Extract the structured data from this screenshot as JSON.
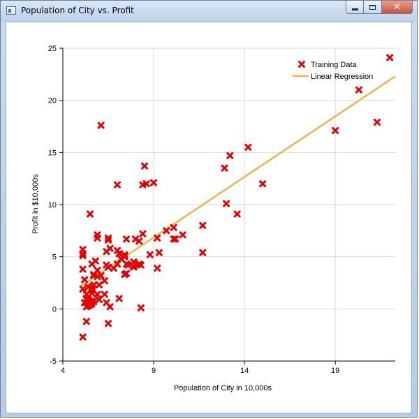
{
  "window": {
    "title": "Population of City vs. Profit",
    "controls": {
      "minimize": "minimize",
      "maximize": "maximize",
      "close": "close"
    }
  },
  "colors": {
    "marker": "#e60000",
    "regression": "#f3b340",
    "grid": "#d9d9d9",
    "axis": "#000000"
  },
  "chart_data": {
    "type": "scatter",
    "title": "",
    "xlabel": "Population of City in 10,000s",
    "ylabel": "Profit in $10,000s",
    "xlim": [
      4,
      22.3
    ],
    "ylim": [
      -5,
      25
    ],
    "xticks": [
      4,
      9,
      14,
      19
    ],
    "yticks": [
      -5,
      0,
      5,
      10,
      15,
      20,
      25
    ],
    "grid": true,
    "legend_position": "top-right",
    "legend": [
      {
        "name": "Training Data",
        "kind": "marker"
      },
      {
        "name": "Linear Regression",
        "kind": "line"
      }
    ],
    "series": [
      {
        "name": "Training Data",
        "points": [
          [
            6.1,
            17.6
          ],
          [
            5.5,
            9.1
          ],
          [
            8.5,
            13.7
          ],
          [
            7.0,
            11.9
          ],
          [
            5.9,
            6.8
          ],
          [
            8.4,
            11.9
          ],
          [
            7.5,
            4.3
          ],
          [
            8.6,
            12.0
          ],
          [
            6.5,
            6.6
          ],
          [
            5.1,
            3.8
          ],
          [
            5.7,
            3.3
          ],
          [
            14.2,
            15.5
          ],
          [
            5.7,
            3.2
          ],
          [
            11.7,
            5.4
          ],
          [
            5.2,
            0.6
          ],
          [
            5.4,
            2.1
          ],
          [
            6.4,
            5.5
          ],
          [
            5.1,
            5.7
          ],
          [
            6.4,
            0.6
          ],
          [
            7.1,
            5.3
          ],
          [
            5.2,
            0.6
          ],
          [
            5.9,
            3.7
          ],
          [
            5.6,
            2.1
          ],
          [
            13.0,
            10.1
          ],
          [
            5.6,
            1.5
          ],
          [
            5.1,
            -2.7
          ],
          [
            7.0,
            4.3
          ],
          [
            7.9,
            4.5
          ],
          [
            7.9,
            4.1
          ],
          [
            5.4,
            0.9
          ],
          [
            7.5,
            6.7
          ],
          [
            6.8,
            3.9
          ],
          [
            8.2,
            6.5
          ],
          [
            5.6,
            1.8
          ],
          [
            5.7,
            2.3
          ],
          [
            5.4,
            0.3
          ],
          [
            5.6,
            0.5
          ],
          [
            9.3,
            5.4
          ],
          [
            5.3,
            0.9
          ],
          [
            13.2,
            14.7
          ],
          [
            7.5,
            3.4
          ],
          [
            5.7,
            0.7
          ],
          [
            8.3,
            0.1
          ],
          [
            7.1,
            1.0
          ],
          [
            5.6,
            0.7
          ],
          [
            7.0,
            5.6
          ],
          [
            7.4,
            3.3
          ],
          [
            8.2,
            4.3
          ],
          [
            20.3,
            21.0
          ],
          [
            6.5,
            4.0
          ],
          [
            9.0,
            12.1
          ],
          [
            6.3,
            2.7
          ],
          [
            10.1,
            6.7
          ],
          [
            5.9,
            1.4
          ],
          [
            12.9,
            13.5
          ],
          [
            8.8,
            5.2
          ],
          [
            10.1,
            7.8
          ],
          [
            10.6,
            7.1
          ],
          [
            5.6,
            2.0
          ],
          [
            5.1,
            1.9
          ],
          [
            6.6,
            0.2
          ],
          [
            7.4,
            5.0
          ],
          [
            5.6,
            4.3
          ],
          [
            15.0,
            12.0
          ],
          [
            6.5,
            -1.4
          ],
          [
            5.9,
            7.1
          ],
          [
            5.3,
            0.2
          ],
          [
            9.2,
            3.9
          ],
          [
            5.3,
            1.4
          ],
          [
            6.3,
            1.4
          ],
          [
            8.4,
            7.2
          ],
          [
            6.0,
            0.9
          ],
          [
            8.3,
            4.2
          ],
          [
            7.2,
            4.8
          ],
          [
            9.2,
            6.8
          ],
          [
            10.2,
            6.7
          ],
          [
            7.4,
            5.2
          ],
          [
            5.5,
            0.4
          ],
          [
            5.3,
            -1.2
          ],
          [
            5.5,
            0.7
          ],
          [
            5.2,
            2.8
          ],
          [
            5.8,
            4.6
          ],
          [
            19.0,
            17.1
          ],
          [
            21.3,
            17.9
          ],
          [
            22.0,
            24.1
          ],
          [
            5.3,
            1.0
          ],
          [
            6.0,
            2.3
          ],
          [
            6.4,
            4.2
          ],
          [
            5.9,
            3.1
          ],
          [
            7.9,
            4.0
          ],
          [
            5.1,
            5.3
          ],
          [
            8.0,
            6.7
          ],
          [
            7.6,
            4.2
          ],
          [
            11.7,
            8.0
          ],
          [
            9.7,
            7.5
          ],
          [
            13.6,
            9.1
          ],
          [
            6.1,
            3.2
          ],
          [
            6.6,
            5.8
          ],
          [
            5.1,
            5.1
          ],
          [
            6.5,
            6.8
          ]
        ]
      },
      {
        "name": "Linear Regression",
        "line": [
          [
            5.0,
            2.2
          ],
          [
            22.3,
            22.3
          ]
        ]
      }
    ]
  }
}
